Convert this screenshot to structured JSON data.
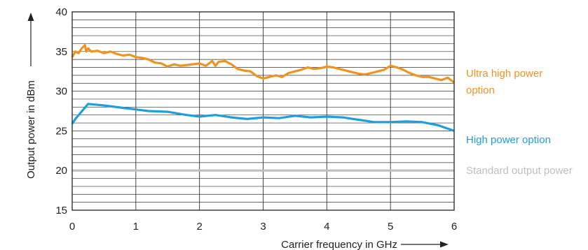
{
  "chart_data": {
    "type": "line",
    "title": "",
    "xlabel": "Carrier frequency in GHz",
    "ylabel": "Output power in dBm",
    "xlim": [
      0,
      6
    ],
    "ylim": [
      15,
      40
    ],
    "xticks": [
      "0",
      "1",
      "2",
      "3",
      "4",
      "5",
      "6"
    ],
    "yticks": [
      "15",
      "20",
      "25",
      "30",
      "35",
      "40"
    ],
    "grid": "vertical lines every 1 GHz, horizontal lines every 1 dBm",
    "legend": "direct labels right of plot",
    "series": [
      {
        "name": "Ultra high power option",
        "label_lines": [
          "Ultra high power",
          "option"
        ],
        "color": "#f0921e",
        "x": [
          0.0,
          0.05,
          0.1,
          0.15,
          0.2,
          0.22,
          0.25,
          0.3,
          0.4,
          0.5,
          0.6,
          0.7,
          0.8,
          0.9,
          1.0,
          1.1,
          1.2,
          1.3,
          1.4,
          1.5,
          1.6,
          1.7,
          1.8,
          1.9,
          2.0,
          2.1,
          2.2,
          2.25,
          2.3,
          2.4,
          2.5,
          2.6,
          2.7,
          2.8,
          2.9,
          3.0,
          3.1,
          3.2,
          3.3,
          3.4,
          3.5,
          3.6,
          3.7,
          3.8,
          3.9,
          4.0,
          4.1,
          4.2,
          4.3,
          4.4,
          4.5,
          4.6,
          4.7,
          4.8,
          4.9,
          5.0,
          5.1,
          5.2,
          5.3,
          5.4,
          5.5,
          5.6,
          5.7,
          5.8,
          5.9,
          6.0
        ],
        "values": [
          34.3,
          35.0,
          34.8,
          35.4,
          35.8,
          35.0,
          35.4,
          35.0,
          35.1,
          34.8,
          35.0,
          34.7,
          34.5,
          34.6,
          34.3,
          34.2,
          34.0,
          33.6,
          33.5,
          33.1,
          33.4,
          33.2,
          33.3,
          33.4,
          33.5,
          33.2,
          33.8,
          33.2,
          33.7,
          33.8,
          33.4,
          32.8,
          32.6,
          32.5,
          31.9,
          31.6,
          31.8,
          32.0,
          31.8,
          32.3,
          32.5,
          32.7,
          33.0,
          32.8,
          32.9,
          33.1,
          33.0,
          32.8,
          32.6,
          32.4,
          32.2,
          32.1,
          32.3,
          32.5,
          32.7,
          33.2,
          33.0,
          32.7,
          32.3,
          32.0,
          31.8,
          31.8,
          31.6,
          31.4,
          31.7,
          31.1
        ]
      },
      {
        "name": "High power option",
        "label_lines": [
          "High power option"
        ],
        "color": "#1e9ee0",
        "x": [
          0.0,
          0.05,
          0.25,
          0.5,
          0.8,
          1.0,
          1.2,
          1.5,
          1.8,
          2.0,
          2.25,
          2.5,
          2.75,
          3.0,
          3.25,
          3.5,
          3.75,
          4.0,
          4.25,
          4.5,
          4.75,
          5.0,
          5.25,
          5.5,
          5.75,
          6.0
        ],
        "values": [
          25.9,
          26.5,
          28.4,
          28.2,
          27.9,
          27.7,
          27.5,
          27.4,
          27.0,
          26.8,
          27.0,
          26.7,
          26.5,
          26.7,
          26.6,
          26.9,
          26.7,
          26.8,
          26.7,
          26.4,
          26.1,
          26.1,
          26.2,
          26.1,
          25.7,
          25.0
        ]
      },
      {
        "name": "Standard output power",
        "label_lines": [
          "Standard output power"
        ],
        "color": "#bbbfc3",
        "x": [
          0,
          6
        ],
        "values": [
          20,
          20
        ]
      }
    ]
  }
}
